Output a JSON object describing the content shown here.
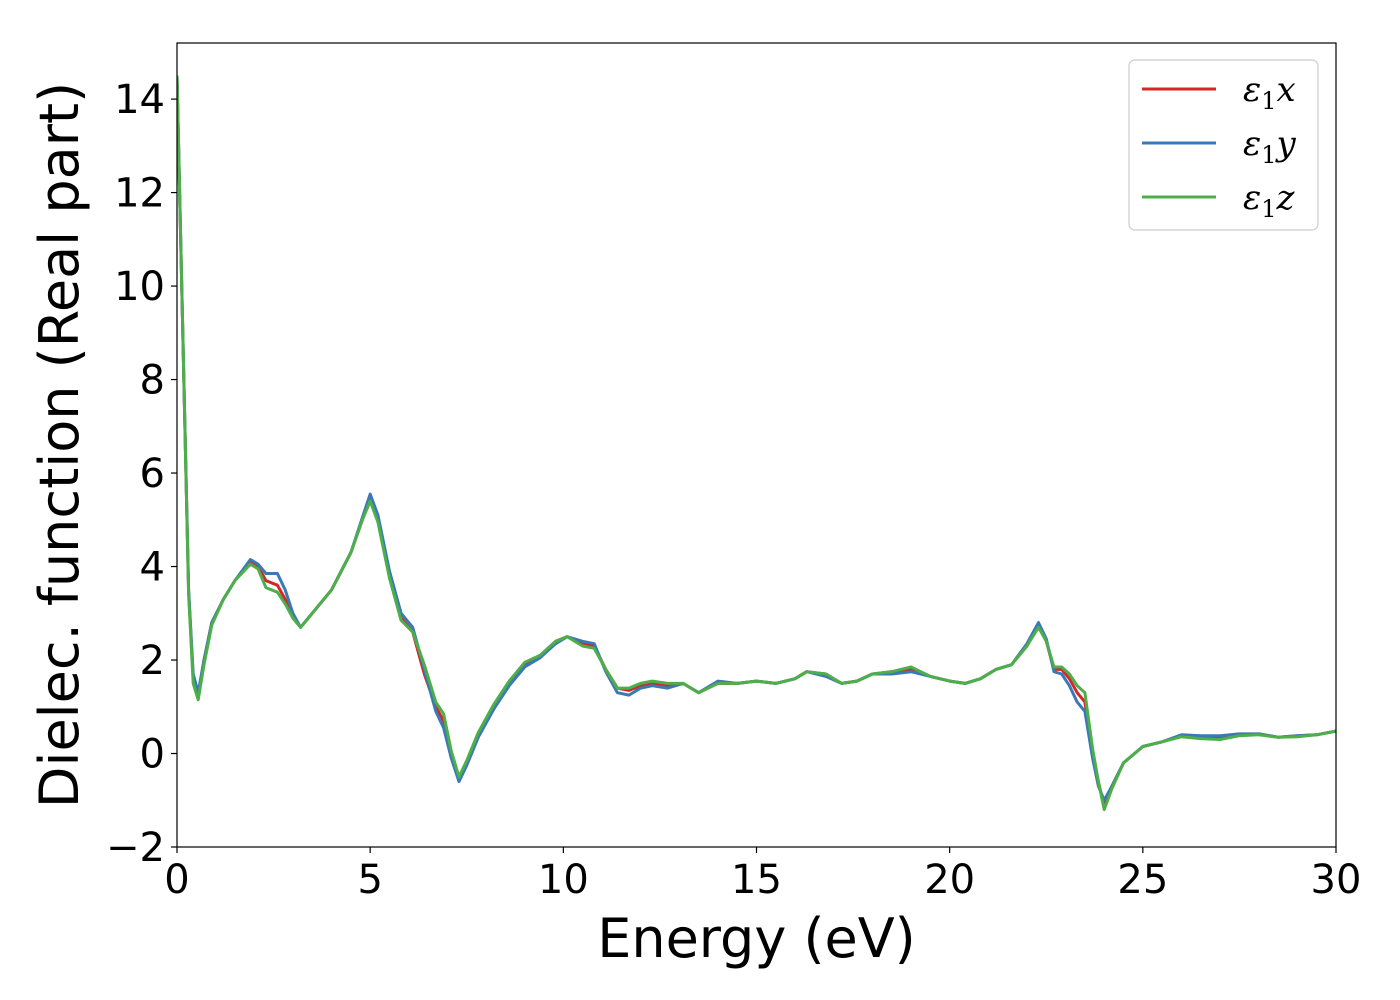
{
  "chart_data": {
    "type": "line",
    "xlabel": "Energy (eV)",
    "ylabel": "Dielec. function (Real part)",
    "xlim": [
      0,
      30
    ],
    "ylim": [
      -2,
      15.2
    ],
    "xticks": [
      0,
      5,
      10,
      15,
      20,
      25,
      30
    ],
    "yticks": [
      -2,
      0,
      2,
      4,
      6,
      8,
      10,
      12,
      14
    ],
    "grid": false,
    "legend_position": "top-right",
    "series": [
      {
        "name": "ε₁x",
        "base": "ε",
        "sub": "1",
        "var": "x",
        "color": "#d62728",
        "x": [
          0,
          0.15,
          0.3,
          0.42,
          0.55,
          0.7,
          0.9,
          1.2,
          1.5,
          1.9,
          2.1,
          2.3,
          2.6,
          2.8,
          3.0,
          3.2,
          3.5,
          4.0,
          4.5,
          4.8,
          5.0,
          5.2,
          5.5,
          5.8,
          6.1,
          6.4,
          6.7,
          6.9,
          7.1,
          7.3,
          7.5,
          7.8,
          8.2,
          8.6,
          9.0,
          9.4,
          9.8,
          10.1,
          10.5,
          10.8,
          11.1,
          11.4,
          11.7,
          12.0,
          12.3,
          12.7,
          13.1,
          13.5,
          14.0,
          14.5,
          15.0,
          15.5,
          16.0,
          16.3,
          16.8,
          17.2,
          17.6,
          18.0,
          18.5,
          19.0,
          19.5,
          20.0,
          20.4,
          20.8,
          21.2,
          21.6,
          22.0,
          22.3,
          22.5,
          22.7,
          22.9,
          23.1,
          23.3,
          23.5,
          23.7,
          23.85,
          24.0,
          24.2,
          24.5,
          25.0,
          25.5,
          26.0,
          26.5,
          27.0,
          27.5,
          28.0,
          28.5,
          29.0,
          29.5,
          30.0
        ],
        "y": [
          14.5,
          9.0,
          3.5,
          1.6,
          1.25,
          2.0,
          2.8,
          3.3,
          3.7,
          4.1,
          4.0,
          3.7,
          3.6,
          3.3,
          2.9,
          2.7,
          3.0,
          3.5,
          4.3,
          5.0,
          5.45,
          5.0,
          3.8,
          2.9,
          2.6,
          1.7,
          1.0,
          0.7,
          0.0,
          -0.55,
          -0.2,
          0.4,
          1.0,
          1.5,
          1.9,
          2.1,
          2.4,
          2.5,
          2.35,
          2.3,
          1.8,
          1.4,
          1.35,
          1.45,
          1.5,
          1.45,
          1.5,
          1.3,
          1.5,
          1.5,
          1.55,
          1.5,
          1.6,
          1.75,
          1.7,
          1.5,
          1.55,
          1.7,
          1.75,
          1.8,
          1.65,
          1.55,
          1.5,
          1.6,
          1.8,
          1.9,
          2.3,
          2.75,
          2.4,
          1.8,
          1.8,
          1.6,
          1.3,
          1.1,
          0.0,
          -0.6,
          -1.15,
          -0.7,
          -0.2,
          0.15,
          0.25,
          0.38,
          0.35,
          0.35,
          0.4,
          0.42,
          0.35,
          0.38,
          0.4,
          0.48
        ]
      },
      {
        "name": "ε₁y",
        "base": "ε",
        "sub": "1",
        "var": "y",
        "color": "#3a78b7",
        "x": [
          0,
          0.15,
          0.3,
          0.42,
          0.55,
          0.7,
          0.9,
          1.2,
          1.5,
          1.9,
          2.1,
          2.3,
          2.6,
          2.8,
          3.0,
          3.2,
          3.5,
          4.0,
          4.5,
          4.8,
          5.0,
          5.2,
          5.5,
          5.8,
          6.1,
          6.4,
          6.7,
          6.9,
          7.1,
          7.3,
          7.5,
          7.8,
          8.2,
          8.6,
          9.0,
          9.4,
          9.8,
          10.1,
          10.5,
          10.8,
          11.1,
          11.4,
          11.7,
          12.0,
          12.3,
          12.7,
          13.1,
          13.5,
          14.0,
          14.5,
          15.0,
          15.5,
          16.0,
          16.3,
          16.8,
          17.2,
          17.6,
          18.0,
          18.5,
          19.0,
          19.5,
          20.0,
          20.4,
          20.8,
          21.2,
          21.6,
          22.0,
          22.3,
          22.5,
          22.7,
          22.9,
          23.1,
          23.3,
          23.5,
          23.7,
          23.85,
          24.0,
          24.2,
          24.5,
          25.0,
          25.5,
          26.0,
          26.5,
          27.0,
          27.5,
          28.0,
          28.5,
          29.0,
          29.5,
          30.0
        ],
        "y": [
          14.5,
          9.0,
          3.5,
          1.7,
          1.3,
          2.0,
          2.8,
          3.3,
          3.7,
          4.15,
          4.05,
          3.85,
          3.85,
          3.5,
          3.0,
          2.7,
          3.0,
          3.5,
          4.3,
          5.05,
          5.55,
          5.1,
          3.9,
          3.0,
          2.7,
          1.8,
          0.9,
          0.55,
          -0.1,
          -0.6,
          -0.25,
          0.35,
          0.95,
          1.45,
          1.85,
          2.05,
          2.35,
          2.5,
          2.4,
          2.35,
          1.75,
          1.3,
          1.25,
          1.4,
          1.45,
          1.4,
          1.5,
          1.3,
          1.55,
          1.5,
          1.55,
          1.5,
          1.6,
          1.75,
          1.65,
          1.5,
          1.55,
          1.7,
          1.7,
          1.75,
          1.65,
          1.55,
          1.5,
          1.6,
          1.8,
          1.9,
          2.35,
          2.8,
          2.45,
          1.75,
          1.7,
          1.45,
          1.1,
          0.9,
          -0.1,
          -0.7,
          -1.0,
          -0.7,
          -0.2,
          0.15,
          0.25,
          0.4,
          0.38,
          0.38,
          0.42,
          0.42,
          0.35,
          0.38,
          0.4,
          0.48
        ]
      },
      {
        "name": "ε₁z",
        "base": "ε",
        "sub": "1",
        "var": "z",
        "color": "#4daf4a",
        "x": [
          0,
          0.15,
          0.3,
          0.42,
          0.55,
          0.7,
          0.9,
          1.2,
          1.5,
          1.9,
          2.1,
          2.3,
          2.6,
          2.8,
          3.0,
          3.2,
          3.5,
          4.0,
          4.5,
          4.8,
          5.0,
          5.2,
          5.5,
          5.8,
          6.1,
          6.4,
          6.7,
          6.9,
          7.1,
          7.3,
          7.5,
          7.8,
          8.2,
          8.6,
          9.0,
          9.4,
          9.8,
          10.1,
          10.5,
          10.8,
          11.1,
          11.4,
          11.7,
          12.0,
          12.3,
          12.7,
          13.1,
          13.5,
          14.0,
          14.5,
          15.0,
          15.5,
          16.0,
          16.3,
          16.8,
          17.2,
          17.6,
          18.0,
          18.5,
          19.0,
          19.5,
          20.0,
          20.4,
          20.8,
          21.2,
          21.6,
          22.0,
          22.3,
          22.5,
          22.7,
          22.9,
          23.1,
          23.3,
          23.5,
          23.7,
          23.85,
          24.0,
          24.2,
          24.5,
          25.0,
          25.5,
          26.0,
          26.5,
          27.0,
          27.5,
          28.0,
          28.5,
          29.0,
          29.5,
          30.0
        ],
        "y": [
          14.5,
          9.0,
          3.4,
          1.5,
          1.15,
          1.9,
          2.75,
          3.3,
          3.7,
          4.05,
          3.95,
          3.55,
          3.45,
          3.2,
          2.9,
          2.7,
          3.0,
          3.5,
          4.3,
          5.0,
          5.4,
          4.95,
          3.75,
          2.85,
          2.6,
          1.9,
          1.1,
          0.85,
          0.05,
          -0.5,
          -0.15,
          0.45,
          1.05,
          1.55,
          1.95,
          2.1,
          2.4,
          2.5,
          2.3,
          2.25,
          1.8,
          1.4,
          1.4,
          1.5,
          1.55,
          1.5,
          1.5,
          1.3,
          1.5,
          1.5,
          1.55,
          1.5,
          1.6,
          1.75,
          1.7,
          1.5,
          1.55,
          1.7,
          1.75,
          1.85,
          1.65,
          1.55,
          1.5,
          1.6,
          1.8,
          1.9,
          2.3,
          2.7,
          2.4,
          1.85,
          1.85,
          1.7,
          1.45,
          1.3,
          0.1,
          -0.6,
          -1.2,
          -0.75,
          -0.2,
          0.15,
          0.25,
          0.36,
          0.32,
          0.3,
          0.38,
          0.4,
          0.35,
          0.36,
          0.4,
          0.48
        ]
      }
    ]
  }
}
